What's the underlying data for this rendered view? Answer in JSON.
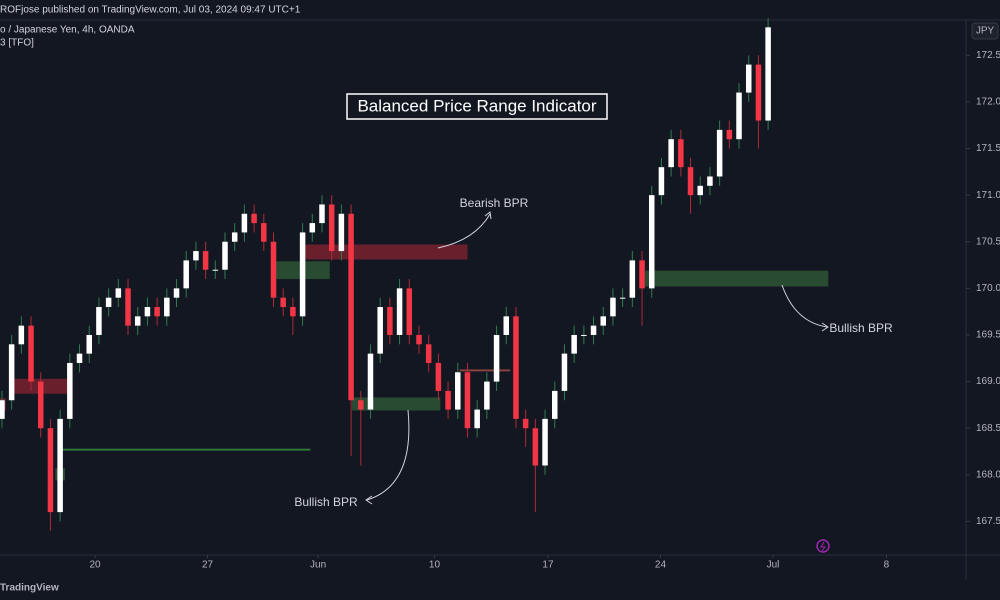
{
  "header": "ROFjose published on TradingView.com, Jul 03, 2024 09:47 UTC+1",
  "footer": "TradingView",
  "chart_data": {
    "type": "candlestick",
    "title": "Balanced Price Range Indicator",
    "symbol": "o / Japanese Yen, 4h, OANDA",
    "indicator": "3 [TFO]",
    "currency": "JPY",
    "annotations": [
      "Bearish BPR",
      "Bullish BPR",
      "Bullish BPR"
    ],
    "up_color": "#ffffff",
    "down_color": "#f23645",
    "up_wick_color": "#2f7d4f",
    "down_wick_color": "#b02a36",
    "grid": false,
    "x": [
      0,
      1,
      2,
      3,
      4,
      5,
      6,
      7,
      8,
      9,
      10,
      11,
      12,
      13,
      14,
      15,
      16,
      17,
      18,
      19,
      20,
      21,
      22,
      23,
      24,
      25,
      26,
      27,
      28,
      29,
      30,
      31,
      32,
      33,
      34,
      35,
      36,
      37,
      38,
      39,
      40,
      41,
      42,
      43,
      44,
      45,
      46,
      47,
      48,
      49,
      50,
      51,
      52,
      53,
      54,
      55,
      56,
      57,
      58,
      59,
      60,
      61,
      62,
      63,
      64,
      65,
      66,
      67,
      68,
      69,
      70,
      71,
      72,
      73,
      74,
      75,
      76,
      77,
      78,
      79
    ],
    "open": [
      168.6,
      168.8,
      169.4,
      169.6,
      169.0,
      168.5,
      167.6,
      168.6,
      169.2,
      169.3,
      169.5,
      169.8,
      169.9,
      170.0,
      169.6,
      169.7,
      169.8,
      169.7,
      169.9,
      170.0,
      170.3,
      170.4,
      170.2,
      170.2,
      170.5,
      170.6,
      170.8,
      170.7,
      170.5,
      169.9,
      169.8,
      169.7,
      170.6,
      170.7,
      170.9,
      170.4,
      170.8,
      168.8,
      168.7,
      169.3,
      169.8,
      169.5,
      170.0,
      169.5,
      169.4,
      169.2,
      168.9,
      168.7,
      169.1,
      168.5,
      168.7,
      169.0,
      169.5,
      169.7,
      168.6,
      168.5,
      168.1,
      168.6,
      168.9,
      169.3,
      169.5,
      169.5,
      169.6,
      169.7,
      169.9,
      169.9,
      170.3,
      170.0,
      171.0,
      171.3,
      171.6,
      171.3,
      171.0,
      171.1,
      171.2,
      171.7,
      171.6,
      172.1,
      172.4,
      171.8
    ],
    "high": [
      168.9,
      169.5,
      169.7,
      169.7,
      169.1,
      168.6,
      168.7,
      169.3,
      169.4,
      169.6,
      169.9,
      170.0,
      170.1,
      170.1,
      169.8,
      169.9,
      169.9,
      170.0,
      170.1,
      170.4,
      170.5,
      170.5,
      170.3,
      170.6,
      170.7,
      170.9,
      170.9,
      170.8,
      170.6,
      170.0,
      169.9,
      170.7,
      170.8,
      171.0,
      171.0,
      170.9,
      170.9,
      168.9,
      169.4,
      169.9,
      169.9,
      170.1,
      170.1,
      169.6,
      169.5,
      169.3,
      169.0,
      169.2,
      169.2,
      168.8,
      169.1,
      169.6,
      169.8,
      169.8,
      168.7,
      168.6,
      168.7,
      169.0,
      169.4,
      169.6,
      169.6,
      169.7,
      169.8,
      170.0,
      170.0,
      170.4,
      170.4,
      171.1,
      171.4,
      171.7,
      171.7,
      171.4,
      171.2,
      171.3,
      171.8,
      171.8,
      172.2,
      172.5,
      172.5,
      172.9
    ],
    "low": [
      168.5,
      168.7,
      169.3,
      168.9,
      168.4,
      167.4,
      167.5,
      168.5,
      169.1,
      169.2,
      169.4,
      169.7,
      169.8,
      169.5,
      169.5,
      169.6,
      169.6,
      169.6,
      169.8,
      169.9,
      170.2,
      170.1,
      170.1,
      170.1,
      170.4,
      170.5,
      170.6,
      170.4,
      169.8,
      169.7,
      169.5,
      169.6,
      170.5,
      170.6,
      170.3,
      170.3,
      168.2,
      168.1,
      168.6,
      169.2,
      169.4,
      169.4,
      169.4,
      169.3,
      169.1,
      168.8,
      168.6,
      168.6,
      168.4,
      168.4,
      168.6,
      168.9,
      169.4,
      168.5,
      168.3,
      167.6,
      168.0,
      168.5,
      168.8,
      169.2,
      169.4,
      169.4,
      169.5,
      169.6,
      169.8,
      169.8,
      169.6,
      169.9,
      170.9,
      171.2,
      171.2,
      170.8,
      170.9,
      171.0,
      171.1,
      171.5,
      171.5,
      172.0,
      171.5,
      171.7
    ],
    "close": [
      168.8,
      169.4,
      169.6,
      169.0,
      168.5,
      167.6,
      168.6,
      169.2,
      169.3,
      169.5,
      169.8,
      169.9,
      170.0,
      169.6,
      169.7,
      169.8,
      169.7,
      169.9,
      170.0,
      170.3,
      170.4,
      170.2,
      170.2,
      170.5,
      170.6,
      170.8,
      170.7,
      170.5,
      169.9,
      169.8,
      169.7,
      170.6,
      170.7,
      170.9,
      170.4,
      170.8,
      168.8,
      168.7,
      169.3,
      169.8,
      169.5,
      170.0,
      169.5,
      169.4,
      169.2,
      168.9,
      168.7,
      169.1,
      168.5,
      168.7,
      169.0,
      169.5,
      169.7,
      168.6,
      168.5,
      168.1,
      168.6,
      168.9,
      169.3,
      169.5,
      169.5,
      169.6,
      169.7,
      169.9,
      169.9,
      170.3,
      170.0,
      171.0,
      171.3,
      171.6,
      171.3,
      171.0,
      171.1,
      171.2,
      171.7,
      171.6,
      172.1,
      172.4,
      171.8,
      172.8
    ],
    "zones": [
      {
        "x": [
          31.2,
          48.0
        ],
        "y": [
          170.31,
          170.47
        ],
        "color": "rgba(178,40,52,0.55)"
      },
      {
        "x": [
          27.8,
          33.8
        ],
        "y": [
          170.1,
          170.29
        ],
        "color": "rgba(56,110,60,0.6)"
      },
      {
        "x": [
          66.3,
          85.2
        ],
        "y": [
          170.02,
          170.19
        ],
        "color": "rgba(56,110,60,0.6)"
      },
      {
        "x": [
          36.1,
          45.2
        ],
        "y": [
          168.69,
          168.83
        ],
        "color": "rgba(56,110,60,0.6)"
      },
      {
        "x": [
          0.8,
          7.0
        ],
        "y": [
          168.87,
          169.03
        ],
        "color": "rgba(178,40,52,0.55)"
      },
      {
        "x": [
          6.0,
          31.8
        ],
        "y": [
          168.26,
          168.28
        ],
        "color": "rgba(56,150,60,0.8)"
      },
      {
        "x": [
          5.5,
          6.5
        ],
        "y": [
          167.94,
          168.07
        ],
        "color": "rgba(56,110,60,0.6)"
      },
      {
        "x": [
          -0.2,
          0.4
        ],
        "y": [
          168.69,
          168.82
        ],
        "color": "rgba(178,40,52,0.55)"
      },
      {
        "x": [
          47.2,
          52.4
        ],
        "y": [
          169.11,
          169.13
        ],
        "color": "rgba(178,80,70,0.8)"
      }
    ],
    "xlim": [
      -0.2,
      99.3
    ],
    "xticks": [
      {
        "value": 9.6,
        "label": "20"
      },
      {
        "value": 21.2,
        "label": "27"
      },
      {
        "value": 32.6,
        "label": "Jun"
      },
      {
        "value": 44.6,
        "label": "10"
      },
      {
        "value": 56.3,
        "label": "17"
      },
      {
        "value": 67.9,
        "label": "24"
      },
      {
        "value": 79.5,
        "label": "Jul"
      },
      {
        "value": 91.2,
        "label": "8"
      }
    ],
    "ylim": [
      167.14,
      172.9
    ],
    "yticks": [
      167.5,
      {
        "value": 168,
        "label": "168.0"
      },
      168.5,
      {
        "value": 169,
        "label": "169.0"
      },
      169.5,
      {
        "value": 170,
        "label": "170.0"
      },
      170.5,
      {
        "value": 171,
        "label": "171.0"
      },
      171.5,
      {
        "value": 172,
        "label": "172.0"
      },
      172.5
    ]
  }
}
